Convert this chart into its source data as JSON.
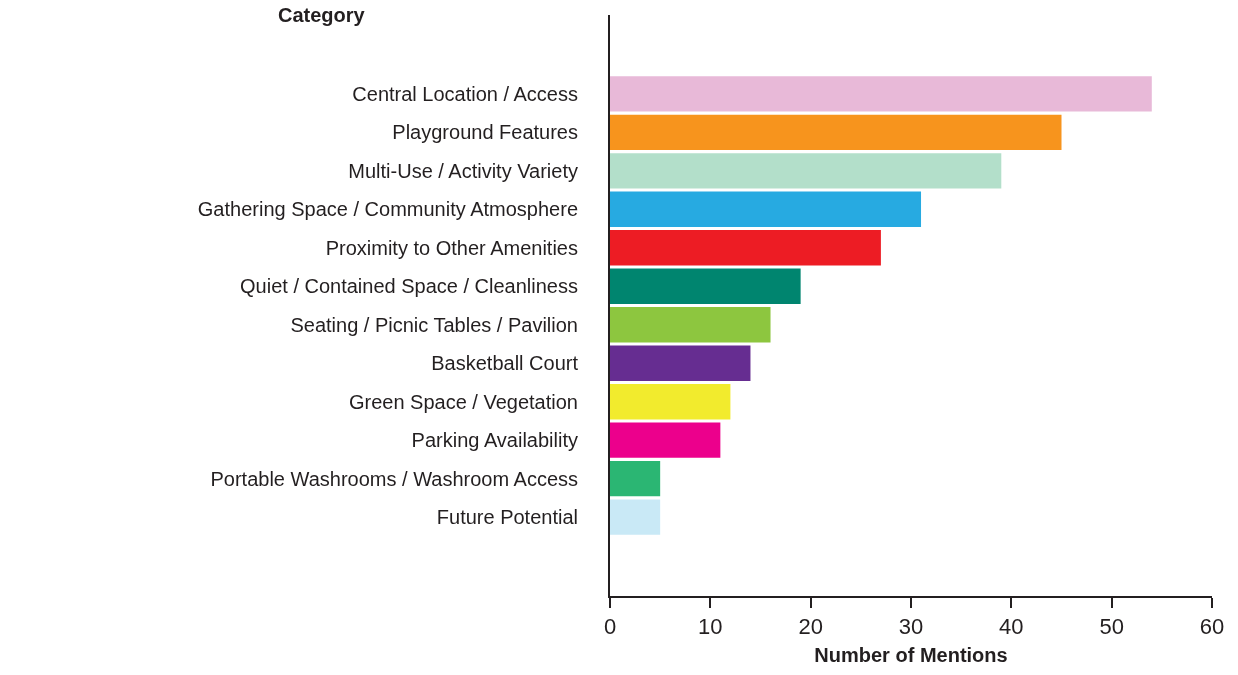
{
  "chart_data": {
    "type": "bar",
    "orientation": "horizontal",
    "categories": [
      "Central Location / Access",
      "Playground Features",
      "Multi-Use / Activity Variety",
      "Gathering Space / Community Atmosphere",
      "Proximity to Other Amenities",
      "Quiet / Contained Space / Cleanliness",
      "Seating / Picnic Tables / Pavilion",
      "Basketball Court",
      "Green Space / Vegetation",
      "Parking Availability",
      "Portable Washrooms / Washroom Access",
      "Future Potential"
    ],
    "values": [
      54,
      45,
      39,
      31,
      27,
      19,
      16,
      14,
      12,
      11,
      5,
      5
    ],
    "colors": [
      "#e8b9d8",
      "#f7941d",
      "#b3dfca",
      "#27aae1",
      "#ed1c24",
      "#00856f",
      "#8dc63f",
      "#662d91",
      "#f2eb2d",
      "#ec008c",
      "#2bb673",
      "#c9e9f6"
    ],
    "xlim": [
      0,
      60
    ],
    "xticks": [
      0,
      10,
      20,
      30,
      40,
      50,
      60
    ],
    "xlabel": "Number of Mentions",
    "ylabel": "Category"
  }
}
